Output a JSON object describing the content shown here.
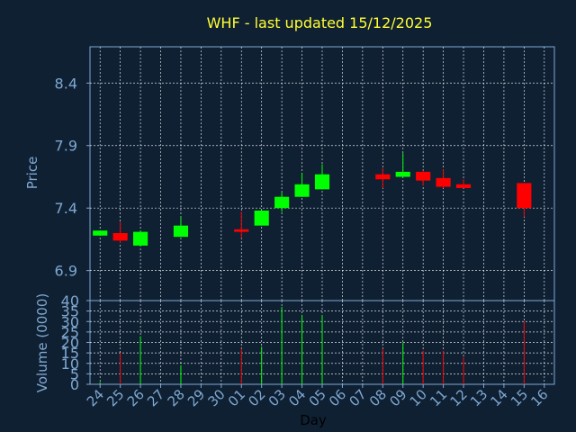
{
  "chart_data": [
    {
      "type": "candlestick",
      "title": "WHF - last updated 15/12/2025",
      "ylabel": "Price",
      "ylim": [
        6.66,
        8.69
      ],
      "yticks": [
        6.9,
        7.4,
        7.9,
        8.4
      ],
      "ytick_labels": [
        "6.9",
        "7.4",
        "7.9",
        "8.4"
      ],
      "grid": true,
      "x_ticks": [
        "24",
        "25",
        "26",
        "27",
        "28",
        "29",
        "30",
        "01",
        "02",
        "03",
        "04",
        "05",
        "06",
        "07",
        "08",
        "09",
        "10",
        "11",
        "12",
        "13",
        "14",
        "15",
        "16"
      ],
      "candles": [
        {
          "x": "24",
          "open": 7.18,
          "close": 7.22,
          "high": 7.22,
          "low": 7.18
        },
        {
          "x": "25",
          "open": 7.2,
          "close": 7.14,
          "high": 7.29,
          "low": 7.12
        },
        {
          "x": "26",
          "open": 7.1,
          "close": 7.21,
          "high": 7.22,
          "low": 7.1
        },
        {
          "x": "28",
          "open": 7.17,
          "close": 7.26,
          "high": 7.33,
          "low": 7.17
        },
        {
          "x": "01",
          "open": 7.23,
          "close": 7.21,
          "high": 7.37,
          "low": 7.16
        },
        {
          "x": "02",
          "open": 7.26,
          "close": 7.38,
          "high": 7.38,
          "low": 7.26
        },
        {
          "x": "03",
          "open": 7.4,
          "close": 7.49,
          "high": 7.53,
          "low": 7.37
        },
        {
          "x": "04",
          "open": 7.49,
          "close": 7.59,
          "high": 7.68,
          "low": 7.49
        },
        {
          "x": "05",
          "open": 7.55,
          "close": 7.67,
          "high": 7.75,
          "low": 7.55
        },
        {
          "x": "08",
          "open": 7.67,
          "close": 7.63,
          "high": 7.72,
          "low": 7.56
        },
        {
          "x": "09",
          "open": 7.65,
          "close": 7.69,
          "high": 7.84,
          "low": 7.65
        },
        {
          "x": "10",
          "open": 7.69,
          "close": 7.62,
          "high": 7.7,
          "low": 7.58
        },
        {
          "x": "11",
          "open": 7.64,
          "close": 7.57,
          "high": 7.71,
          "low": 7.56
        },
        {
          "x": "12",
          "open": 7.59,
          "close": 7.56,
          "high": 7.63,
          "low": 7.56
        },
        {
          "x": "15",
          "open": 7.6,
          "close": 7.4,
          "high": 7.6,
          "low": 7.33
        }
      ],
      "colors": {
        "up": "#00ff00",
        "down": "#ff0000",
        "title": "#ffff33",
        "axis_text": "#7fa8d0",
        "background": "#0f2033",
        "grid": "#ffffff"
      }
    },
    {
      "type": "bar",
      "xlabel": "Day",
      "ylabel": "Volume (0000)",
      "ylim": [
        0,
        40
      ],
      "yticks": [
        0,
        5,
        10,
        15,
        20,
        25,
        30,
        35,
        40
      ],
      "ytick_labels": [
        "0",
        "5",
        "10",
        "15",
        "20",
        "25",
        "30",
        "35",
        "40"
      ],
      "grid": true,
      "x_ticks": [
        "24",
        "25",
        "26",
        "27",
        "28",
        "29",
        "30",
        "01",
        "02",
        "03",
        "04",
        "05",
        "06",
        "07",
        "08",
        "09",
        "10",
        "11",
        "12",
        "13",
        "14",
        "15",
        "16"
      ],
      "bars": [
        {
          "x": "24",
          "value": 1,
          "direction": "up"
        },
        {
          "x": "25",
          "value": 15,
          "direction": "down"
        },
        {
          "x": "26",
          "value": 23,
          "direction": "up"
        },
        {
          "x": "28",
          "value": 9,
          "direction": "up"
        },
        {
          "x": "01",
          "value": 17,
          "direction": "down"
        },
        {
          "x": "02",
          "value": 18,
          "direction": "up"
        },
        {
          "x": "03",
          "value": 37,
          "direction": "up"
        },
        {
          "x": "04",
          "value": 33,
          "direction": "up"
        },
        {
          "x": "05",
          "value": 33,
          "direction": "up"
        },
        {
          "x": "08",
          "value": 17,
          "direction": "down"
        },
        {
          "x": "09",
          "value": 20,
          "direction": "up"
        },
        {
          "x": "10",
          "value": 16,
          "direction": "down"
        },
        {
          "x": "11",
          "value": 16,
          "direction": "down"
        },
        {
          "x": "12",
          "value": 13,
          "direction": "down"
        },
        {
          "x": "15",
          "value": 30,
          "direction": "down"
        }
      ]
    }
  ]
}
